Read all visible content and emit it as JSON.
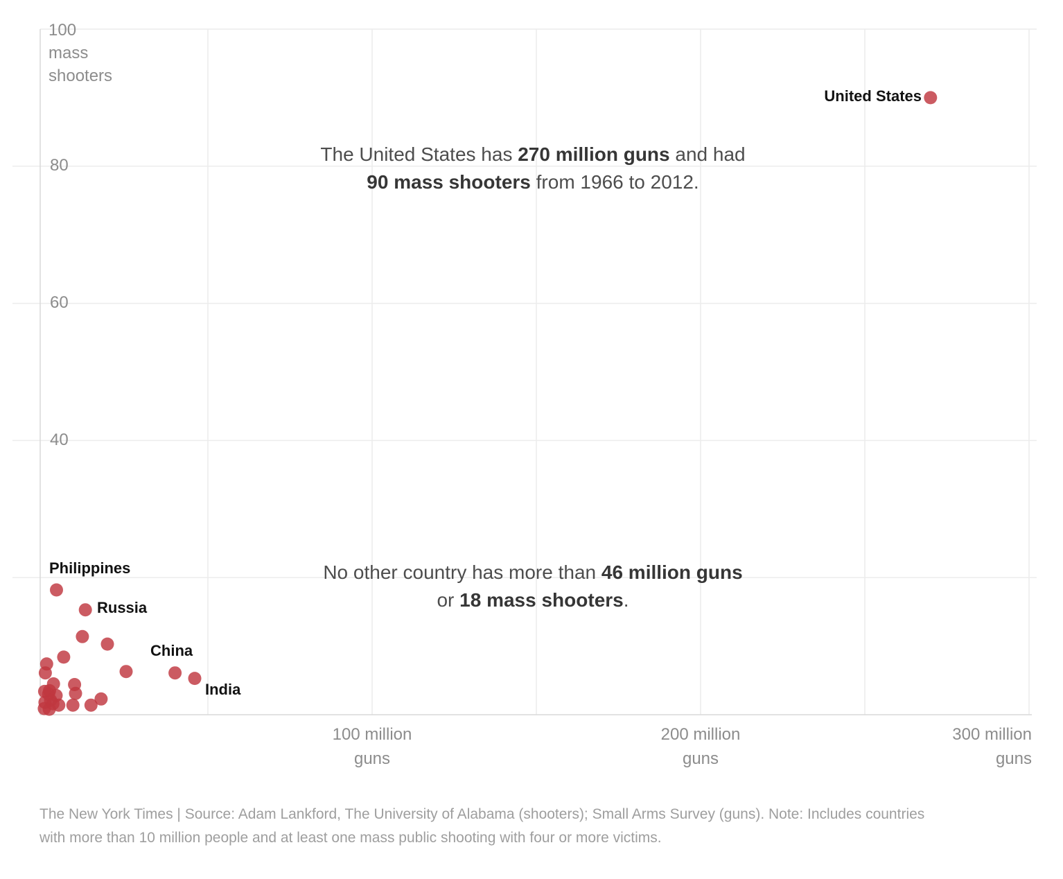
{
  "chart_data": {
    "type": "scatter",
    "xlabel": "guns (millions)",
    "ylabel": "mass shooters",
    "xlim_millions": [
      0,
      300
    ],
    "ylim": [
      0,
      100
    ],
    "grid": "on",
    "x_axis": {
      "tick_step_millions": 50,
      "labeled_ticks": [
        {
          "line1": "100 million",
          "line2": "guns"
        },
        {
          "line1": "200 million",
          "line2": "guns"
        },
        {
          "line1": "300 million",
          "line2": "guns"
        }
      ]
    },
    "y_axis": {
      "tick_step": 20,
      "top_tick": "100",
      "unit_line1": "mass",
      "unit_line2": "shooters",
      "ticks": [
        "80",
        "60",
        "40"
      ]
    },
    "points": [
      {
        "country": "United States",
        "guns_millions": 270,
        "mass_shooters": 90
      },
      {
        "country": "Philippines",
        "guns_millions": 3.9,
        "mass_shooters": 18.2
      },
      {
        "country": "Russia",
        "guns_millions": 12.7,
        "mass_shooters": 15.3
      },
      {
        "country": "China",
        "guns_millions": 40,
        "mass_shooters": 6.1
      },
      {
        "country": "India",
        "guns_millions": 46,
        "mass_shooters": 5.3
      },
      {
        "guns_millions": 11.8,
        "mass_shooters": 11.4
      },
      {
        "guns_millions": 19.4,
        "mass_shooters": 10.3
      },
      {
        "guns_millions": 6.1,
        "mass_shooters": 8.4
      },
      {
        "guns_millions": 0.9,
        "mass_shooters": 7.4
      },
      {
        "guns_millions": 0.5,
        "mass_shooters": 6.1
      },
      {
        "guns_millions": 25.1,
        "mass_shooters": 6.3
      },
      {
        "guns_millions": 3.0,
        "mass_shooters": 4.5
      },
      {
        "guns_millions": 9.4,
        "mass_shooters": 4.4
      },
      {
        "guns_millions": 1.8,
        "mass_shooters": 3.5
      },
      {
        "guns_millions": 9.7,
        "mass_shooters": 3.1
      },
      {
        "guns_millions": 0.3,
        "mass_shooters": 3.4
      },
      {
        "guns_millions": 1.5,
        "mass_shooters": 3.0
      },
      {
        "guns_millions": 3.8,
        "mass_shooters": 2.8
      },
      {
        "guns_millions": 2.1,
        "mass_shooters": 2.1
      },
      {
        "guns_millions": 0.4,
        "mass_shooters": 1.8
      },
      {
        "guns_millions": 2.8,
        "mass_shooters": 1.6
      },
      {
        "guns_millions": 4.6,
        "mass_shooters": 1.4
      },
      {
        "guns_millions": 0.2,
        "mass_shooters": 0.9
      },
      {
        "guns_millions": 1.7,
        "mass_shooters": 0.8
      },
      {
        "guns_millions": 8.9,
        "mass_shooters": 1.4
      },
      {
        "guns_millions": 14.4,
        "mass_shooters": 1.4
      },
      {
        "guns_millions": 17.5,
        "mass_shooters": 2.3
      }
    ]
  },
  "labels": {
    "united_states": "United States",
    "philippines": "Philippines",
    "russia": "Russia",
    "china": "China",
    "india": "India"
  },
  "annotations": {
    "us": {
      "line1": [
        "The United States has ",
        "270 million guns",
        " and had"
      ],
      "line2": [
        "90 mass shooters",
        " from 1966 to 2012."
      ]
    },
    "others": {
      "line1": [
        "No other country has more than ",
        "46 million guns"
      ],
      "line2": [
        "or ",
        "18 mass shooters",
        "."
      ]
    }
  },
  "footer": {
    "line1": "The New York Times  |  Source: Adam Lankford, The University of Alabama (shooters); Small Arms Survey (guns). Note: Includes countries",
    "line2": "with more than 10 million people and at least one mass public shooting with four or more victims."
  },
  "colors": {
    "dot": "#c03740",
    "dot_opacity": 0.82,
    "gridline": "#ececec",
    "axis_line": "#d9d9d9",
    "tick_text": "#8c8c8c",
    "annotation_text": "#4d4d4d",
    "annotation_bold": "#363636",
    "country_label": "#121212",
    "footer_text": "#9e9e9e"
  }
}
